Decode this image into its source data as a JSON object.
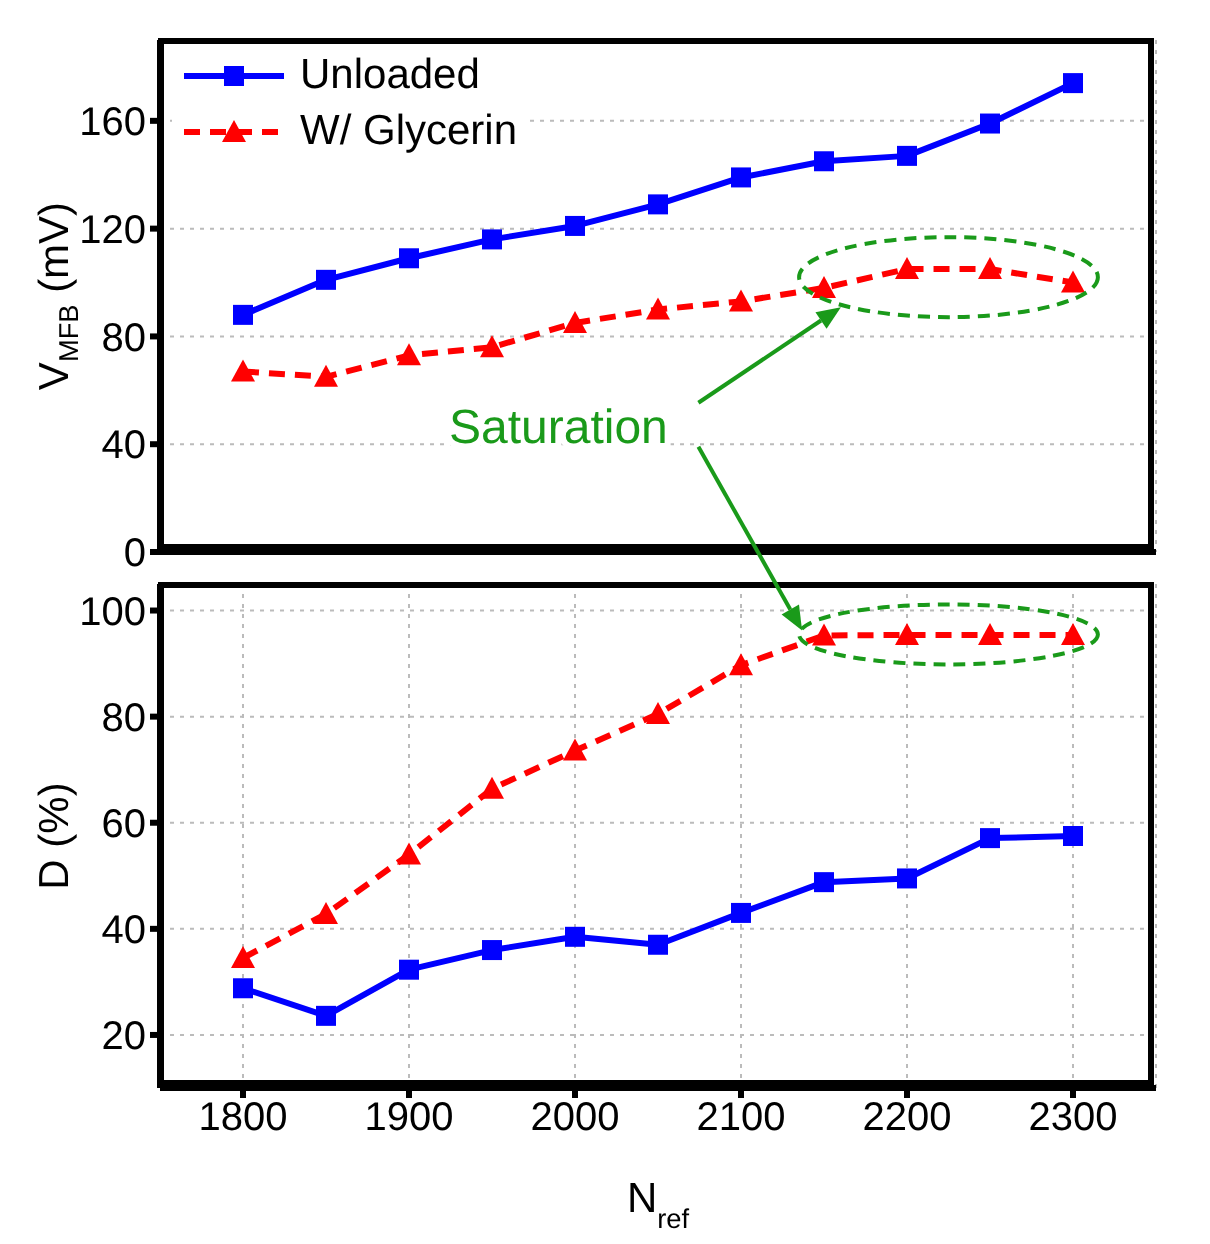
{
  "chart_data": [
    {
      "type": "line",
      "ylabel": "V$_{MFB}$ (mV)",
      "x": [
        1800,
        1850,
        1900,
        1950,
        2000,
        2050,
        2100,
        2150,
        2200,
        2250,
        2300
      ],
      "series": [
        {
          "name": "Unloaded",
          "color": "#0000ff",
          "marker": "square",
          "line_style": "solid",
          "values": [
            88,
            101,
            109,
            116,
            121,
            129,
            139,
            145,
            147,
            159,
            174
          ]
        },
        {
          "name": "W/ Glycerin",
          "color": "#ff0000",
          "marker": "triangle",
          "line_style": "dashed",
          "values": [
            67,
            65,
            73,
            76,
            85,
            90,
            93,
            98,
            105,
            105,
            100
          ]
        }
      ],
      "xlim": [
        1750,
        2350
      ],
      "xticks": [
        1800,
        1900,
        2000,
        2100,
        2200,
        2300
      ],
      "ylim": [
        0,
        190
      ],
      "yticks": [
        0,
        40,
        80,
        120,
        160
      ],
      "grid": true,
      "legend": "top left",
      "tick_labels": "y",
      "annotations": [
        "Saturation"
      ]
    },
    {
      "type": "line",
      "xlabel": "N$_{ref}$",
      "ylabel": "D (%)",
      "x": [
        1800,
        1850,
        1900,
        1950,
        2000,
        2050,
        2100,
        2150,
        2200,
        2250,
        2300
      ],
      "series": [
        {
          "color": "#0000ff",
          "marker": "square",
          "line_style": "solid",
          "values": [
            28.8,
            23.6,
            32.3,
            36,
            38.5,
            37,
            43,
            48.8,
            49.5,
            57.1,
            57.5
          ]
        },
        {
          "color": "#ff0000",
          "marker": "triangle",
          "line_style": "dashed",
          "values": [
            34.5,
            42.8,
            54,
            66.4,
            73.6,
            80.5,
            89.7,
            95.3,
            95.4,
            95.4,
            95.4
          ]
        }
      ],
      "xlim": [
        1750,
        2350
      ],
      "xticks": [
        1800,
        1900,
        2000,
        2100,
        2200,
        2300
      ],
      "ylim": [
        10,
        105
      ],
      "yticks": [
        20,
        40,
        60,
        80,
        100
      ],
      "grid": true
    }
  ]
}
